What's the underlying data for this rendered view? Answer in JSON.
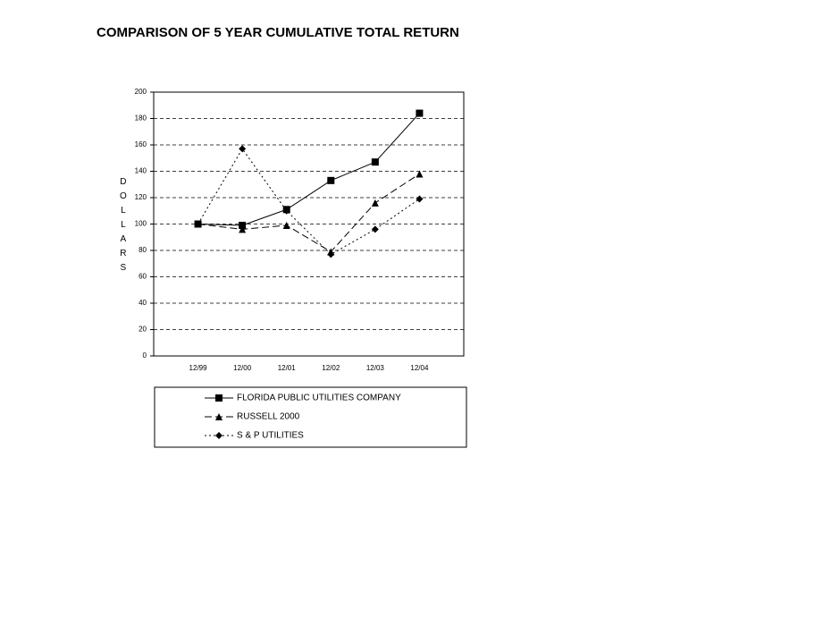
{
  "chart_data": {
    "type": "line",
    "title": "COMPARISON OF 5 YEAR CUMULATIVE TOTAL RETURN",
    "y_label": "DOLLARS",
    "categories": [
      "12/99",
      "12/00",
      "12/01",
      "12/02",
      "12/03",
      "12/04"
    ],
    "series": [
      {
        "name": "FLORIDA PUBLIC UTILITIES COMPANY",
        "color": "#000000",
        "marker": "square",
        "dash": "solid",
        "values": [
          100,
          99,
          111,
          133,
          147,
          184
        ]
      },
      {
        "name": "RUSSELL 2000",
        "color": "#000000",
        "marker": "triangle",
        "dash": "dashed",
        "values": [
          100,
          96,
          99,
          79,
          116,
          138
        ]
      },
      {
        "name": "S & P UTILITIES",
        "color": "#000000",
        "marker": "diamond",
        "dash": "dotted",
        "values": [
          100,
          157,
          110,
          77,
          96,
          119
        ]
      }
    ],
    "ylim": [
      0,
      200
    ],
    "yticks": [
      0,
      20,
      40,
      60,
      80,
      100,
      120,
      140,
      160,
      180,
      200
    ],
    "grid": true,
    "legend_position": "bottom"
  }
}
